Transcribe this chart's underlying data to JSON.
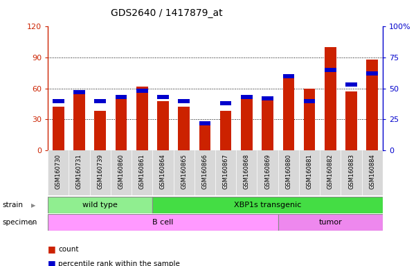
{
  "title": "GDS2640 / 1417879_at",
  "samples": [
    "GSM160730",
    "GSM160731",
    "GSM160739",
    "GSM160860",
    "GSM160861",
    "GSM160864",
    "GSM160865",
    "GSM160866",
    "GSM160867",
    "GSM160868",
    "GSM160869",
    "GSM160880",
    "GSM160881",
    "GSM160882",
    "GSM160883",
    "GSM160884"
  ],
  "counts": [
    42,
    57,
    38,
    52,
    62,
    48,
    42,
    25,
    38,
    50,
    52,
    72,
    60,
    100,
    57,
    88
  ],
  "percentiles": [
    40,
    47,
    40,
    43,
    48,
    43,
    40,
    22,
    38,
    43,
    42,
    60,
    40,
    65,
    53,
    62
  ],
  "strain_groups": [
    {
      "label": "wild type",
      "start": 0,
      "end": 5,
      "color": "#90EE90"
    },
    {
      "label": "XBP1s transgenic",
      "start": 5,
      "end": 16,
      "color": "#44DD44"
    }
  ],
  "specimen_groups": [
    {
      "label": "B cell",
      "start": 0,
      "end": 11,
      "color": "#FF99FF"
    },
    {
      "label": "tumor",
      "start": 11,
      "end": 16,
      "color": "#EE88EE"
    }
  ],
  "bar_color": "#CC2200",
  "percentile_color": "#0000CC",
  "ylim_left": [
    0,
    120
  ],
  "ylim_right": [
    0,
    100
  ],
  "yticks_left": [
    0,
    30,
    60,
    90,
    120
  ],
  "ytick_labels_left": [
    "0",
    "30",
    "60",
    "90",
    "120"
  ],
  "yticks_right_vals": [
    0,
    25,
    50,
    75,
    100
  ],
  "ytick_labels_right": [
    "0",
    "25",
    "50",
    "75",
    "100%"
  ],
  "background_color": "#ffffff",
  "xticklabel_bg": "#e0e0e0",
  "legend_count_label": "count",
  "legend_pct_label": "percentile rank within the sample",
  "strain_label": "strain",
  "specimen_label": "specimen"
}
